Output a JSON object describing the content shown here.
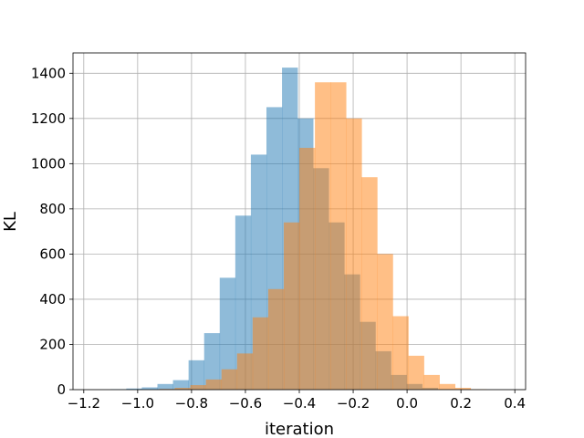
{
  "chart_data": {
    "type": "bar",
    "subtype": "overlapping-histogram",
    "title": "",
    "xlabel": "iteration",
    "ylabel": "KL",
    "xlim": [
      -1.24,
      0.44
    ],
    "ylim": [
      0,
      1490
    ],
    "xticks": [
      -1.2,
      -1.0,
      -0.8,
      -0.6,
      -0.4,
      -0.2,
      0.0,
      0.2,
      0.4
    ],
    "xtick_labels": [
      "−1.2",
      "−1.0",
      "−0.8",
      "−0.6",
      "−0.4",
      "−0.2",
      "0.0",
      "0.2",
      "0.4"
    ],
    "yticks": [
      0,
      200,
      400,
      600,
      800,
      1000,
      1200,
      1400
    ],
    "ytick_labels": [
      "0",
      "200",
      "400",
      "600",
      "800",
      "1000",
      "1200",
      "1400"
    ],
    "grid": true,
    "legend": "none",
    "alpha": 0.5,
    "series": [
      {
        "color": "#1f77b4",
        "bin_start": -1.1,
        "bin_width": 0.0578,
        "values": [
          2,
          5,
          10,
          25,
          42,
          130,
          250,
          495,
          770,
          1040,
          1250,
          1425,
          1200,
          980,
          740,
          510,
          300,
          170,
          65,
          25,
          8,
          2
        ]
      },
      {
        "color": "#ff7f0e",
        "bin_start": -0.92,
        "bin_width": 0.0578,
        "values": [
          3,
          8,
          20,
          45,
          90,
          160,
          320,
          445,
          740,
          1070,
          1360,
          1360,
          1200,
          940,
          600,
          325,
          150,
          65,
          25,
          8,
          2
        ]
      }
    ]
  }
}
